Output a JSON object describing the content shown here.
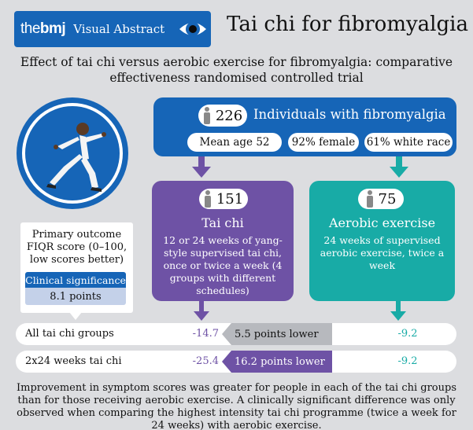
{
  "header": {
    "brand_the": "the",
    "brand_bmj": "bmj",
    "brand_suffix": "Visual Abstract",
    "title": "Tai chi for fibromyalgia"
  },
  "subtitle": "Effect of tai chi versus aerobic exercise for fibromyalgia: comparative effectiveness randomised controlled trial",
  "population": {
    "count": "226",
    "label": "Individuals with fibromyalgia",
    "tags": [
      "Mean age 52",
      "92% female",
      "61% white race"
    ]
  },
  "arms": {
    "taichi": {
      "count": "151",
      "title": "Tai chi",
      "description": "12 or 24 weeks of yang-style supervised tai chi, once or twice a week (4 groups with different schedules)"
    },
    "aerobic": {
      "count": "75",
      "title": "Aerobic exercise",
      "description": "24 weeks of supervised aerobic exercise, twice a week"
    }
  },
  "outcome": {
    "text": "Primary outcome FIQR score (0–100, low scores better)",
    "clinical_label": "Clinical significance",
    "clinical_value": "8.1 points"
  },
  "results": [
    {
      "label": "All tai chi groups",
      "taichi": "-14.7",
      "difference": "5.5 points lower",
      "aerobic": "-9.2",
      "significant": false
    },
    {
      "label": "2x24 weeks tai chi",
      "taichi": "-25.4",
      "difference": "16.2 points lower",
      "aerobic": "-9.2",
      "significant": true
    }
  ],
  "footer": "Improvement in symptom scores was greater for people in each of the tai chi groups than for those receiving aerobic exercise. A clinically significant difference was only observed when comparing the highest intensity tai chi programme (twice a week for 24 weeks) with aerobic exercise.",
  "colors": {
    "bmj_blue": "#1665b7",
    "taichi_purple": "#6e52a5",
    "aerobic_teal": "#18aba6",
    "background": "#dcdde0"
  },
  "icons": [
    "eye-icon",
    "person-icon",
    "tai-chi-figure-icon"
  ]
}
